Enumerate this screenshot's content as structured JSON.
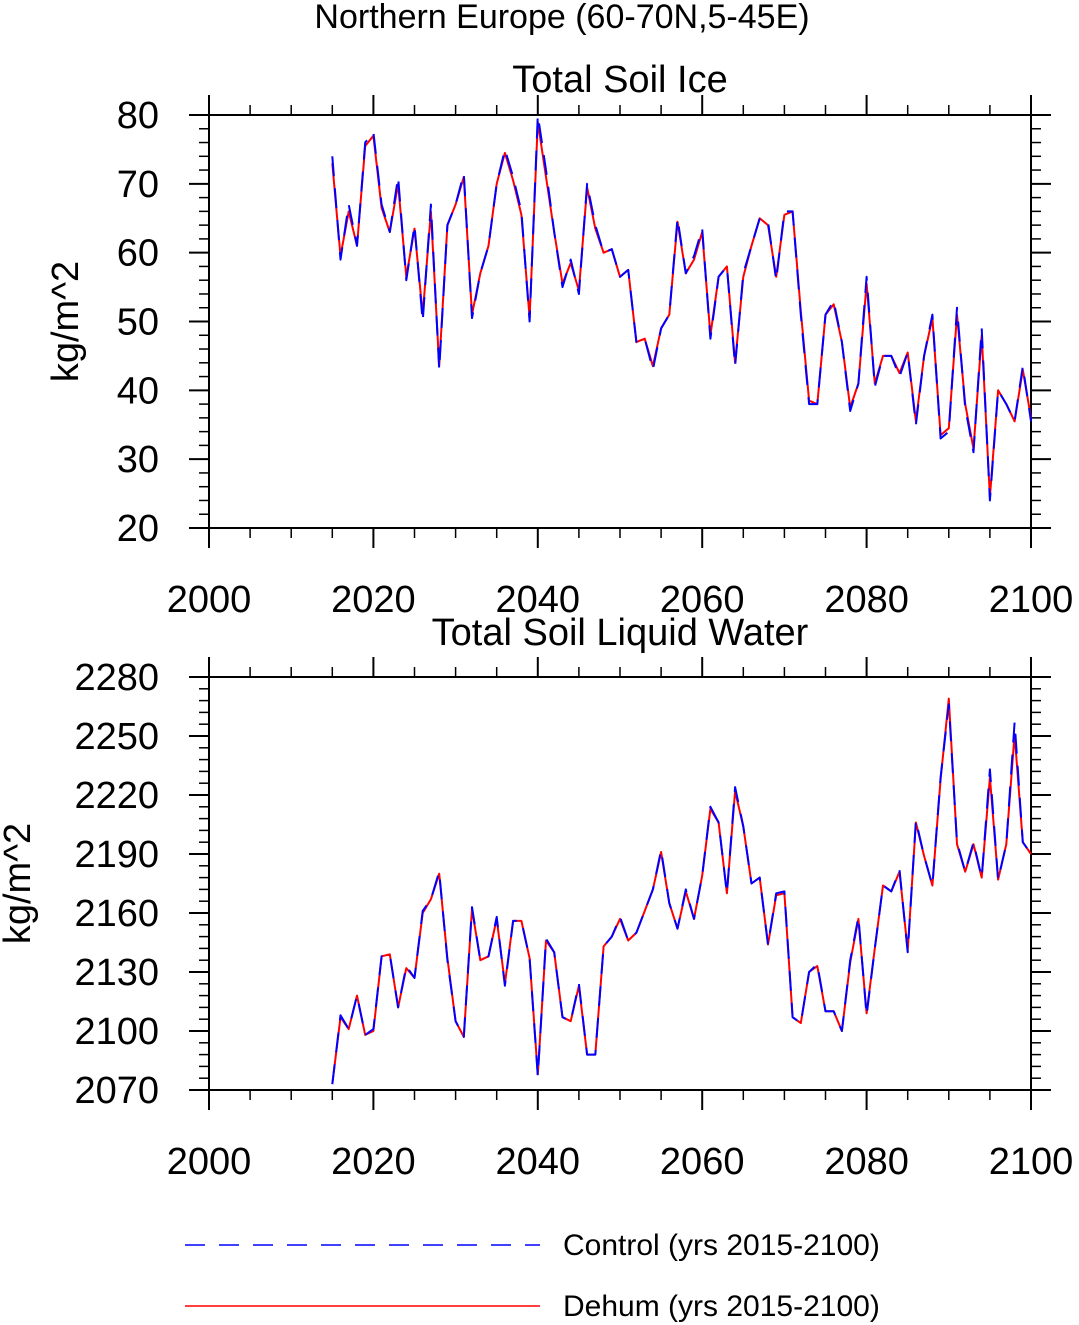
{
  "page_title": "Northern Europe (60-70N,5-45E)",
  "colors": {
    "control": "#0000ff",
    "dehum": "#ff0000",
    "axis": "#000000"
  },
  "legend": {
    "control_label": "Control (yrs 2015-2100)",
    "dehum_label": "Dehum (yrs 2015-2100)"
  },
  "chart_data": [
    {
      "type": "line",
      "title": "Total Soil Ice",
      "xlabel": "",
      "ylabel": "kg/m^2",
      "xlim": [
        2000,
        2100
      ],
      "ylim": [
        20,
        80
      ],
      "xticks": [
        2000,
        2020,
        2040,
        2060,
        2080,
        2100
      ],
      "xtick_labels": [
        "2000",
        "2020",
        "2040",
        "2060",
        "2080",
        "2100"
      ],
      "yticks": [
        20,
        30,
        40,
        50,
        60,
        70,
        80
      ],
      "ytick_labels": [
        "20",
        "30",
        "40",
        "50",
        "60",
        "70",
        "80"
      ],
      "x_start": 2015,
      "series": [
        {
          "name": "Control (yrs 2015-2100)",
          "style": "dashed",
          "color": "#0000ff",
          "values": [
            74,
            59,
            67,
            61,
            76,
            77.5,
            67,
            63,
            71,
            56,
            64,
            50,
            67,
            43,
            64,
            67,
            71.5,
            50.5,
            57,
            61,
            70,
            75,
            71,
            66,
            50,
            80,
            72,
            63,
            55,
            59,
            54,
            70,
            64,
            60,
            60.5,
            56.5,
            57.5,
            47,
            47.5,
            43,
            49,
            51,
            65,
            57,
            59.5,
            63.5,
            47.5,
            56.5,
            58,
            43.5,
            57,
            61,
            65,
            64.5,
            56,
            66,
            66,
            51,
            38,
            38,
            51,
            53,
            47,
            37,
            41,
            56.5,
            40.5,
            45,
            45,
            42,
            45.5,
            35,
            45,
            51,
            33,
            34,
            52,
            37.5,
            31,
            49,
            24,
            40,
            38,
            35.5,
            43.5,
            35.5
          ]
        },
        {
          "name": "Dehum (yrs 2015-2100)",
          "style": "solid",
          "color": "#ff0000",
          "values": [
            73,
            59.5,
            66,
            61,
            75.5,
            77,
            66.5,
            63,
            70,
            56.5,
            63.5,
            51,
            66,
            43.5,
            64,
            67,
            71,
            51,
            57,
            61,
            70,
            74.5,
            70.5,
            65.5,
            50.5,
            79,
            71,
            63,
            55.5,
            58.5,
            54.5,
            69.5,
            63.5,
            60,
            60.5,
            56.5,
            57.5,
            47,
            47.5,
            43.5,
            49,
            51,
            64.5,
            57,
            59,
            63,
            48,
            56.5,
            58,
            44,
            56.5,
            61,
            65,
            64,
            56.5,
            65.5,
            66,
            51.5,
            38.5,
            38,
            51,
            52.5,
            47,
            37.5,
            41,
            55.5,
            41,
            45,
            45,
            42.5,
            45.5,
            35.5,
            45,
            50.5,
            33.5,
            34.5,
            51,
            38,
            31.5,
            48,
            24.5,
            40,
            38,
            35.5,
            43,
            36
          ]
        }
      ]
    },
    {
      "type": "line",
      "title": "Total Soil Liquid Water",
      "xlabel": "",
      "ylabel": "kg/m^2",
      "xlim": [
        2000,
        2100
      ],
      "ylim": [
        2070,
        2280
      ],
      "xticks": [
        2000,
        2020,
        2040,
        2060,
        2080,
        2100
      ],
      "xtick_labels": [
        "2000",
        "2020",
        "2040",
        "2060",
        "2080",
        "2100"
      ],
      "yticks": [
        2070,
        2100,
        2130,
        2160,
        2190,
        2220,
        2250,
        2280
      ],
      "ytick_labels": [
        "2070",
        "2100",
        "2130",
        "2160",
        "2190",
        "2220",
        "2250",
        "2280"
      ],
      "x_start": 2015,
      "series": [
        {
          "name": "Control (yrs 2015-2100)",
          "style": "dashed",
          "color": "#0000ff",
          "values": [
            2073,
            2108,
            2101,
            2118,
            2098,
            2101,
            2138,
            2139,
            2112,
            2133,
            2127,
            2161,
            2167,
            2181,
            2136,
            2105,
            2097,
            2163,
            2136,
            2138,
            2158,
            2123,
            2156,
            2156,
            2137,
            2077,
            2147,
            2140,
            2107,
            2105,
            2124,
            2088,
            2088,
            2143,
            2148,
            2158,
            2146,
            2150,
            2161,
            2172,
            2192,
            2165,
            2152,
            2172,
            2157,
            2179,
            2214,
            2206,
            2170,
            2224,
            2204,
            2175,
            2178,
            2144,
            2170,
            2171,
            2107,
            2104,
            2130,
            2134,
            2110,
            2110,
            2100,
            2136,
            2158,
            2108,
            2142,
            2174,
            2171,
            2182,
            2140,
            2207,
            2189,
            2174,
            2229,
            2266,
            2196,
            2181,
            2196,
            2178,
            2233,
            2177,
            2195,
            2257,
            2196,
            2190
          ]
        },
        {
          "name": "Dehum (yrs 2015-2100)",
          "style": "solid",
          "color": "#ff0000",
          "values": [
            2073,
            2107,
            2101,
            2118,
            2098,
            2100,
            2138,
            2139,
            2112,
            2132,
            2127,
            2160,
            2167,
            2180,
            2137,
            2105,
            2097,
            2162,
            2136,
            2138,
            2157,
            2124,
            2156,
            2156,
            2137,
            2078,
            2146,
            2140,
            2107,
            2105,
            2123,
            2088,
            2088,
            2143,
            2148,
            2157,
            2146,
            2150,
            2161,
            2172,
            2191,
            2165,
            2152,
            2171,
            2157,
            2179,
            2213,
            2206,
            2170,
            2222,
            2204,
            2175,
            2178,
            2144,
            2169,
            2170,
            2107,
            2104,
            2130,
            2133,
            2110,
            2110,
            2100,
            2135,
            2157,
            2109,
            2142,
            2174,
            2171,
            2181,
            2141,
            2206,
            2189,
            2174,
            2228,
            2269,
            2195,
            2181,
            2195,
            2178,
            2229,
            2177,
            2195,
            2251,
            2196,
            2190
          ]
        }
      ]
    }
  ]
}
